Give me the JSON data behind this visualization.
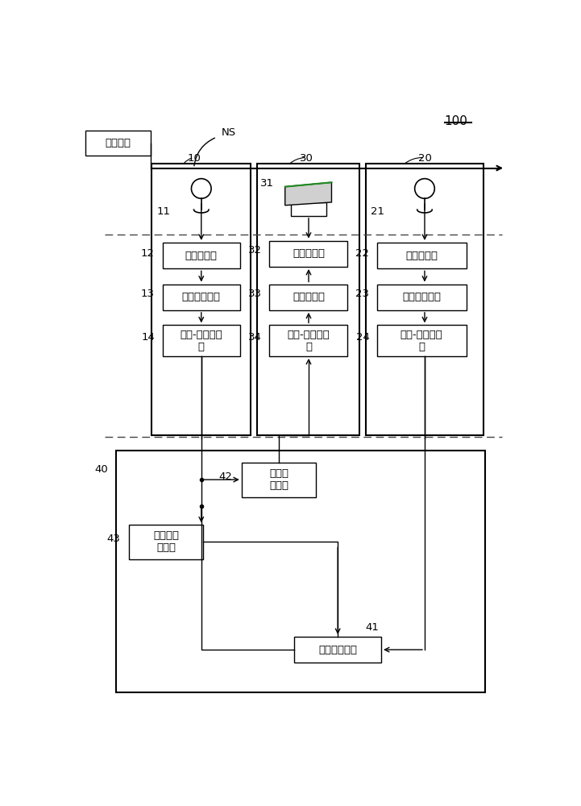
{
  "bg_color": "#ffffff",
  "label_100": "100",
  "label_NS": "NS",
  "label_env": "环境噪声",
  "label_10": "10",
  "label_20": "20",
  "label_30": "30",
  "label_11": "11",
  "label_12": "12",
  "label_13": "13",
  "label_14": "14",
  "label_21": "21",
  "label_22": "22",
  "label_23": "23",
  "label_24": "24",
  "label_31": "31",
  "label_32": "32",
  "label_33": "33",
  "label_34": "34",
  "label_40": "40",
  "label_41": "41",
  "label_42": "42",
  "label_43": "43",
  "box_preamp_L": "前置放大器",
  "box_antialiasL": "抗混迭滤波器",
  "box_adcL": "模拟-数字转换\n器",
  "box_power_amp": "功率放大器",
  "box_reconstruct": "重建滤波器",
  "box_dac": "数字-模拟转换\n器",
  "box_preamp_R": "前置放大器",
  "box_antialiasR": "抗混迭滤波器",
  "box_adcR": "模拟-数字转换\n器",
  "box_biquad": "双二阶\n滤波器",
  "box_secondary": "次级路径\n滤波器",
  "box_adaptive": "自适应运算器"
}
